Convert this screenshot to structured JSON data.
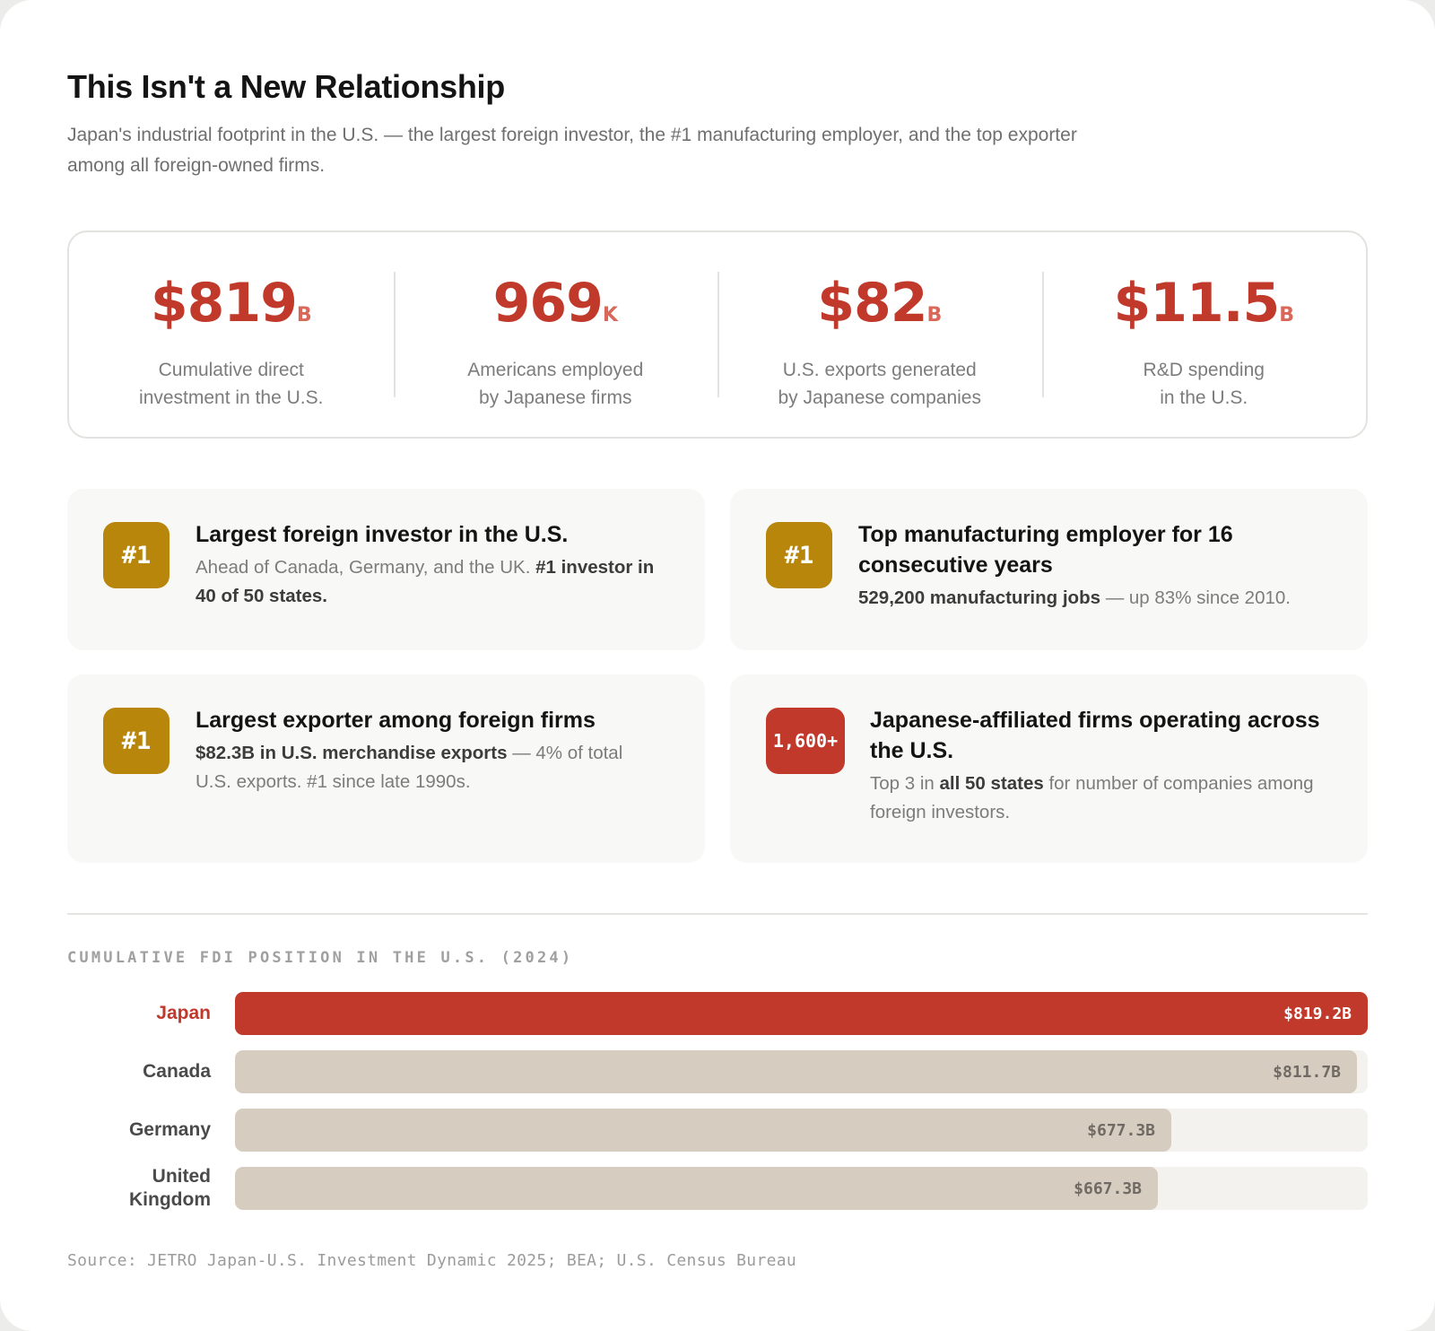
{
  "header": {
    "title": "This Isn't a New Relationship",
    "subtitle": "Japan's industrial footprint in the U.S. — the largest foreign investor, the #1 manufacturing employer, and the top exporter among all foreign-owned firms."
  },
  "stats": [
    {
      "value": "$819",
      "unit": "B",
      "label_line1": "Cumulative direct",
      "label_line2": "investment in the U.S."
    },
    {
      "value": "969",
      "unit": "K",
      "label_line1": "Americans employed",
      "label_line2": "by Japanese firms"
    },
    {
      "value": "$82",
      "unit": "B",
      "label_line1": "U.S. exports generated",
      "label_line2": "by Japanese companies"
    },
    {
      "value": "$11.5",
      "unit": "B",
      "label_line1": "R&D spending",
      "label_line2": "in the U.S."
    }
  ],
  "cards": [
    {
      "badge": "#1",
      "title": "Largest foreign investor in the U.S.",
      "text_before": "Ahead of Canada, Germany, and the UK. ",
      "text_bold": "#1 investor in 40 of 50 states.",
      "text_after": ""
    },
    {
      "badge": "#1",
      "title": "Top manufacturing employer for 16 consecutive years",
      "text_before": "",
      "text_bold": "529,200 manufacturing jobs",
      "text_after": " — up 83% since 2010."
    },
    {
      "badge": "#1",
      "title": "Largest exporter among foreign firms",
      "text_before": "",
      "text_bold": "$82.3B in U.S. merchandise exports",
      "text_after": " — 4% of total U.S. exports. #1 since late 1990s."
    },
    {
      "badge": "1,600+",
      "title": "Japanese-affiliated firms operating across the U.S.",
      "text_before": "Top 3 in ",
      "text_bold": "all 50 states",
      "text_after": " for number of companies among foreign investors."
    }
  ],
  "colors": {
    "accent": "#c0392b",
    "gold": "#b8860b",
    "bar_neutral": "#d6cdc0"
  },
  "chart_data": {
    "type": "bar",
    "orientation": "horizontal",
    "title": "CUMULATIVE FDI POSITION IN THE U.S. (2024)",
    "categories": [
      "Japan",
      "Canada",
      "Germany",
      "United Kingdom"
    ],
    "values": [
      819.2,
      811.7,
      677.3,
      667.3
    ],
    "value_labels": [
      "$819.2B",
      "$811.7B",
      "$677.3B",
      "$667.3B"
    ],
    "highlight": "Japan",
    "xlim": [
      0,
      819.2
    ]
  },
  "footer": {
    "source": "Source: JETRO Japan-U.S. Investment Dynamic 2025; BEA; U.S. Census Bureau"
  }
}
